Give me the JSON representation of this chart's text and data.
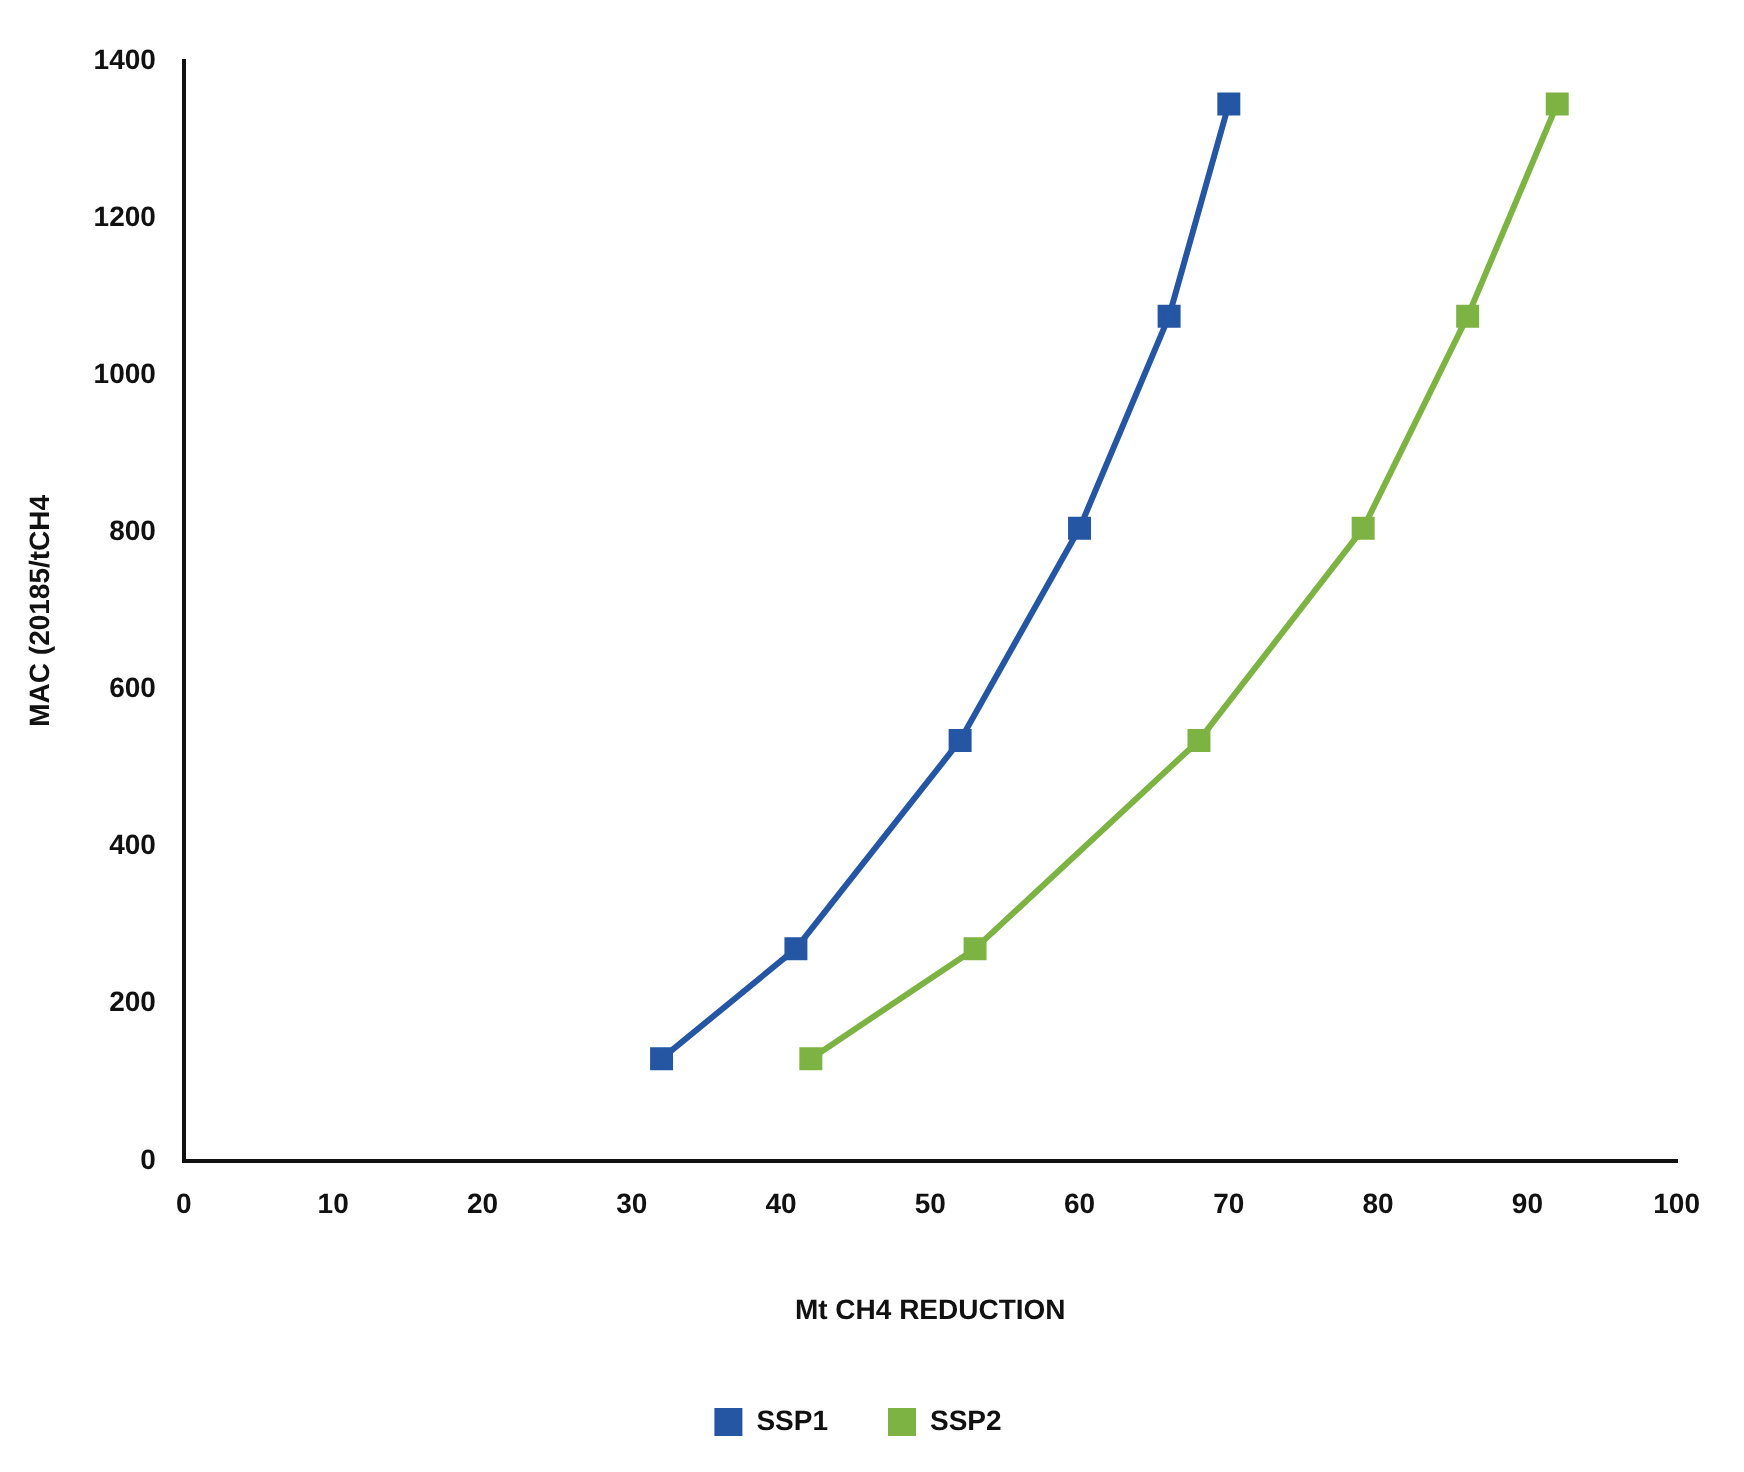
{
  "chart_data": {
    "type": "line",
    "xlabel": "Mt CH4 REDUCTION",
    "ylabel": "MAC (20185/tCH4",
    "xlim": [
      0,
      100
    ],
    "xticks": [
      0,
      10,
      20,
      30,
      40,
      50,
      60,
      70,
      80,
      90,
      100
    ],
    "ylim": [
      0,
      1400
    ],
    "yticks": [
      0,
      200,
      400,
      600,
      800,
      1000,
      1200,
      1400
    ],
    "grid": false,
    "legend": "bottom",
    "marker": "square",
    "line_style": "solid",
    "series": [
      {
        "name": "SSP1",
        "color": "#2456a4",
        "x": [
          32,
          41,
          52,
          60,
          66,
          70
        ],
        "values": [
          130,
          270,
          535,
          805,
          1075,
          1345
        ]
      },
      {
        "name": "SSP2",
        "color": "#7cb342",
        "x": [
          42,
          53,
          68,
          79,
          86,
          92
        ],
        "values": [
          130,
          270,
          535,
          805,
          1075,
          1345
        ]
      }
    ]
  }
}
